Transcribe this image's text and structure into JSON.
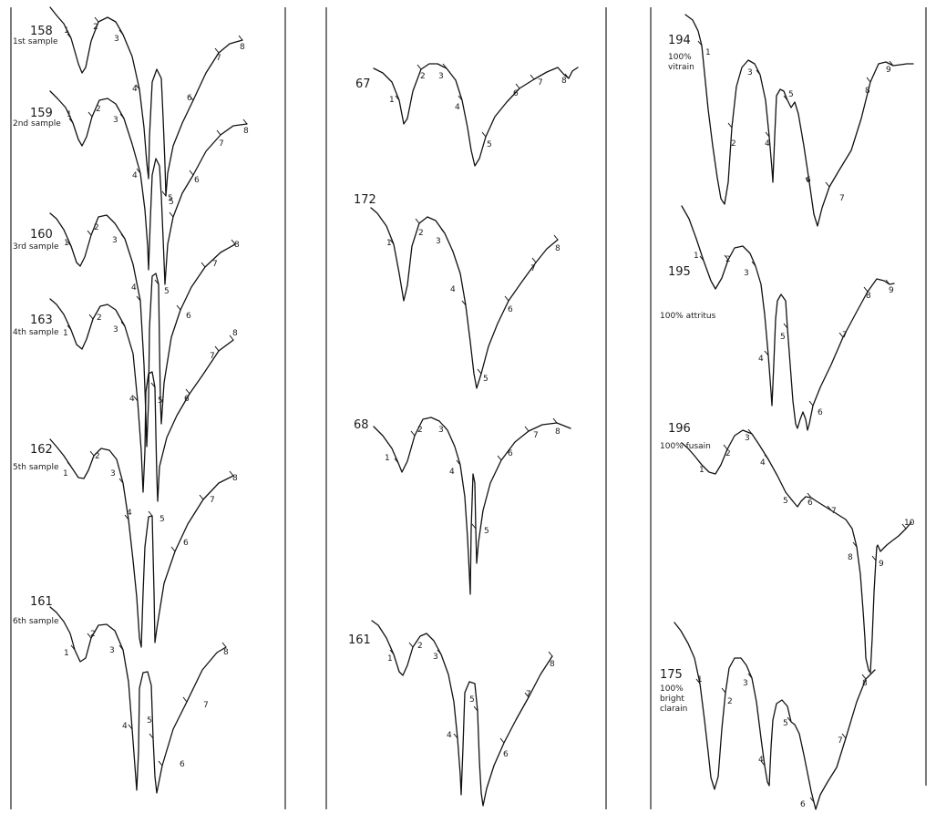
{
  "panels": [
    {
      "traces": [
        {
          "id": "158",
          "note": "1st sample",
          "ticks": [
            "1",
            "2",
            "3",
            "4",
            "5",
            "6",
            "7",
            "8"
          ]
        },
        {
          "id": "159",
          "note": "2nd sample",
          "ticks": [
            "1",
            "2",
            "3",
            "4",
            "5",
            "6",
            "7",
            "8"
          ]
        },
        {
          "id": "160",
          "note": "3rd sample",
          "ticks": [
            "1",
            "2",
            "3",
            "4",
            "5",
            "6",
            "7",
            "8"
          ]
        },
        {
          "id": "163",
          "note": "4th sample",
          "ticks": [
            "1",
            "2",
            "3",
            "4",
            "5",
            "6",
            "7",
            "8"
          ]
        },
        {
          "id": "162",
          "note": "5th sample",
          "ticks": [
            "1",
            "2",
            "3",
            "4",
            "5",
            "6",
            "7",
            "8"
          ]
        },
        {
          "id": "161",
          "note": "6th sample",
          "ticks": [
            "1",
            "2",
            "3",
            "4",
            "5",
            "6",
            "7",
            "8"
          ]
        }
      ]
    },
    {
      "traces": [
        {
          "id": "67",
          "note": "",
          "ticks": [
            "1",
            "2",
            "3",
            "4",
            "5",
            "6",
            "7",
            "8"
          ]
        },
        {
          "id": "172",
          "note": "",
          "ticks": [
            "1",
            "2",
            "3",
            "4",
            "5",
            "6",
            "7",
            "8"
          ]
        },
        {
          "id": "68",
          "note": "",
          "ticks": [
            "1",
            "2",
            "3",
            "4",
            "5",
            "6",
            "7",
            "8"
          ]
        },
        {
          "id": "161",
          "note": "",
          "ticks": [
            "1",
            "2",
            "3",
            "4",
            "5",
            "6",
            "7",
            "8"
          ]
        }
      ]
    },
    {
      "traces": [
        {
          "id": "194",
          "note": "100% vitrain",
          "ticks": [
            "1",
            "2",
            "3",
            "4",
            "5",
            "6",
            "7",
            "8",
            "9"
          ]
        },
        {
          "id": "195",
          "note": "100% attritus",
          "ticks": [
            "1",
            "2",
            "3",
            "4",
            "5",
            "6",
            "7",
            "8",
            "9"
          ]
        },
        {
          "id": "196",
          "note": "100% fusain",
          "ticks": [
            "1",
            "2",
            "3",
            "4",
            "5",
            "6",
            "7",
            "8",
            "9",
            "10"
          ]
        },
        {
          "id": "175",
          "note": "100% bright clarain",
          "ticks": [
            "1",
            "2",
            "3",
            "4",
            "5",
            "6",
            "7",
            "8"
          ]
        }
      ]
    }
  ]
}
